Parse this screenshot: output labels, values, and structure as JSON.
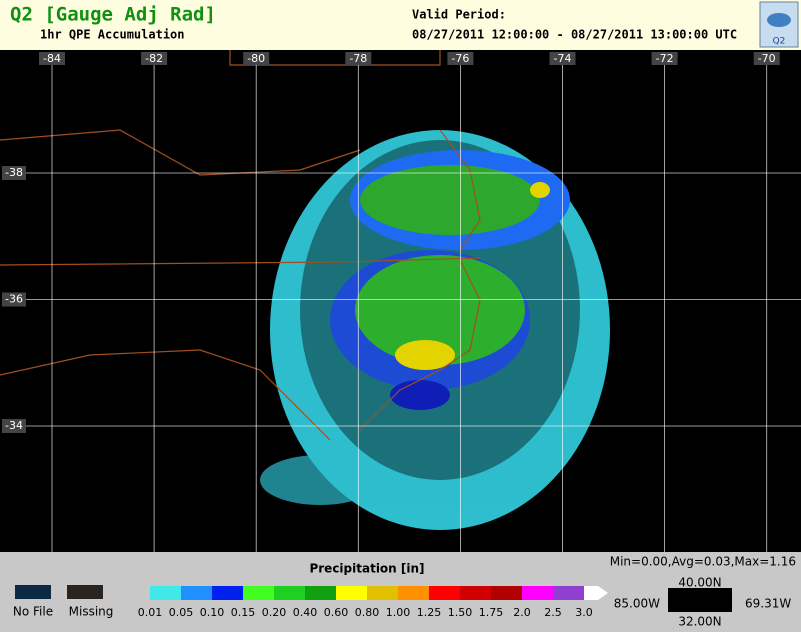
{
  "header": {
    "title": "Q2 [Gauge Adj Rad]",
    "subtitle": "1hr QPE Accumulation",
    "valid_label": "Valid Period:",
    "valid_range": "08/27/2011 12:00:00 - 08/27/2011 13:00:00 UTC",
    "logo": "Q2"
  },
  "map": {
    "lon_labels": [
      "-84",
      "-82",
      "-80",
      "-78",
      "-76",
      "-74",
      "-72",
      "-70"
    ],
    "lat_labels": [
      "-38",
      "-36",
      "-34"
    ]
  },
  "legend": {
    "title": "Precipitation [in]",
    "stats": "Min=0.00,Avg=0.03,Max=1.16",
    "special": [
      {
        "label": "No File",
        "color": "#0c2a44"
      },
      {
        "label": "Missing",
        "color": "#2a2420"
      }
    ],
    "bins": [
      {
        "label": "0.01",
        "color": "#40e8e8"
      },
      {
        "label": "0.05",
        "color": "#2090ff"
      },
      {
        "label": "0.10",
        "color": "#0020f0"
      },
      {
        "label": "0.15",
        "color": "#40ff20"
      },
      {
        "label": "0.20",
        "color": "#20d020"
      },
      {
        "label": "0.40",
        "color": "#10a010"
      },
      {
        "label": "0.60",
        "color": "#ffff00"
      },
      {
        "label": "0.80",
        "color": "#e0c000"
      },
      {
        "label": "1.00",
        "color": "#ff9000"
      },
      {
        "label": "1.25",
        "color": "#ff0000"
      },
      {
        "label": "1.50",
        "color": "#d00000"
      },
      {
        "label": "1.75",
        "color": "#b00000"
      },
      {
        "label": "2.0",
        "color": "#ff00ff"
      },
      {
        "label": "2.5",
        "color": "#9040d0"
      },
      {
        "label": "3.0",
        "color": "#ffffff"
      }
    ],
    "bounds": {
      "north": "40.00N",
      "west": "85.00W",
      "east": "69.31W",
      "south": "32.00N"
    }
  }
}
